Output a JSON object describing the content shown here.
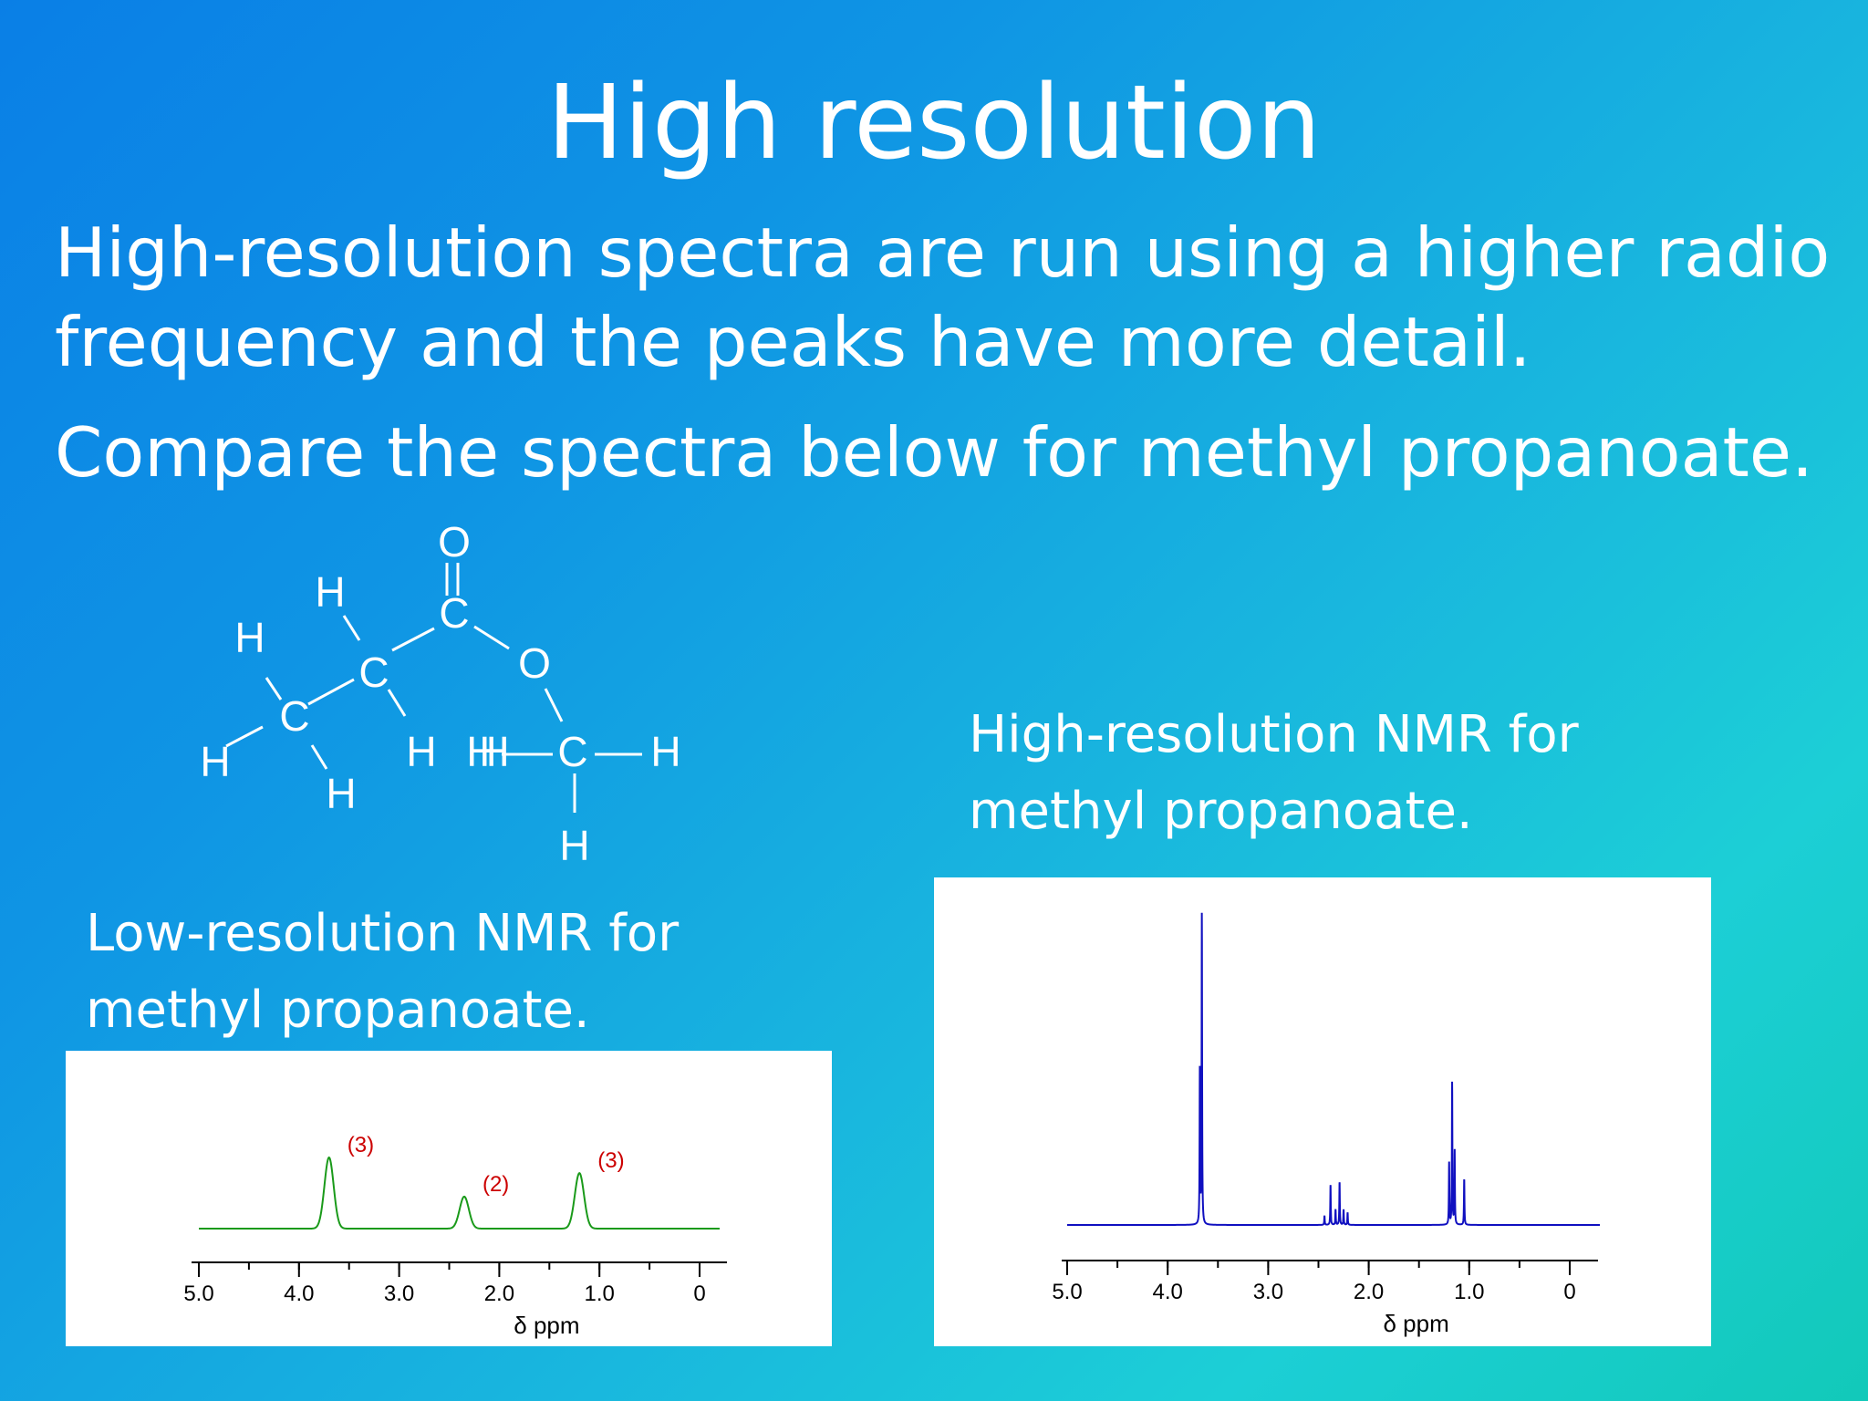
{
  "slide": {
    "title": "High resolution",
    "paragraph_1": "High-resolution spectra are run using a higher radio frequency and the peaks have more detail.",
    "paragraph_2": "Compare the spectra below for methyl propanoate.",
    "caption_low": "Low-resolution NMR for methyl propanoate.",
    "caption_high": "High-resolution NMR for methyl propanoate."
  },
  "molecule": {
    "atoms": [
      "H",
      "H",
      "H",
      "C",
      "H",
      "C",
      "H",
      "H",
      "C",
      "O",
      "O",
      "H",
      "C",
      "H",
      "H"
    ]
  },
  "chart_data": [
    {
      "type": "line",
      "name": "low-resolution",
      "xlabel": "δ ppm",
      "x_ticks": [
        5.0,
        4.0,
        3.0,
        2.0,
        1.0,
        0
      ],
      "x_tick_labels": [
        "5.0",
        "4.0",
        "3.0",
        "2.0",
        "1.0",
        "0"
      ],
      "xlim": [
        5.0,
        -0.2
      ],
      "axis_direction": "reversed",
      "line_color": "#1a9a1a",
      "annotation_color": "#cc0000",
      "peaks": [
        {
          "shift": 3.7,
          "height": 1.0,
          "label": "(3)"
        },
        {
          "shift": 2.35,
          "height": 0.45,
          "label": "(2)"
        },
        {
          "shift": 1.2,
          "height": 0.78,
          "label": "(3)"
        }
      ]
    },
    {
      "type": "line",
      "name": "high-resolution",
      "xlabel": "δ ppm",
      "x_ticks": [
        5.0,
        4.0,
        3.0,
        2.0,
        1.0,
        0
      ],
      "x_tick_labels": [
        "5.0",
        "4.0",
        "3.0",
        "2.0",
        "1.0",
        "0"
      ],
      "xlim": [
        5.0,
        -0.3
      ],
      "axis_direction": "reversed",
      "line_color": "#1010c0",
      "peaks": [
        {
          "shift": 3.66,
          "height": 1.0
        },
        {
          "shift": 3.68,
          "height": 0.5
        },
        {
          "shift": 2.44,
          "height": 0.03
        },
        {
          "shift": 2.38,
          "height": 0.13
        },
        {
          "shift": 2.33,
          "height": 0.05
        },
        {
          "shift": 2.29,
          "height": 0.14
        },
        {
          "shift": 2.25,
          "height": 0.05
        },
        {
          "shift": 2.21,
          "height": 0.04
        },
        {
          "shift": 1.2,
          "height": 0.2
        },
        {
          "shift": 1.17,
          "height": 0.46
        },
        {
          "shift": 1.145,
          "height": 0.24
        },
        {
          "shift": 1.05,
          "height": 0.15
        }
      ]
    }
  ]
}
